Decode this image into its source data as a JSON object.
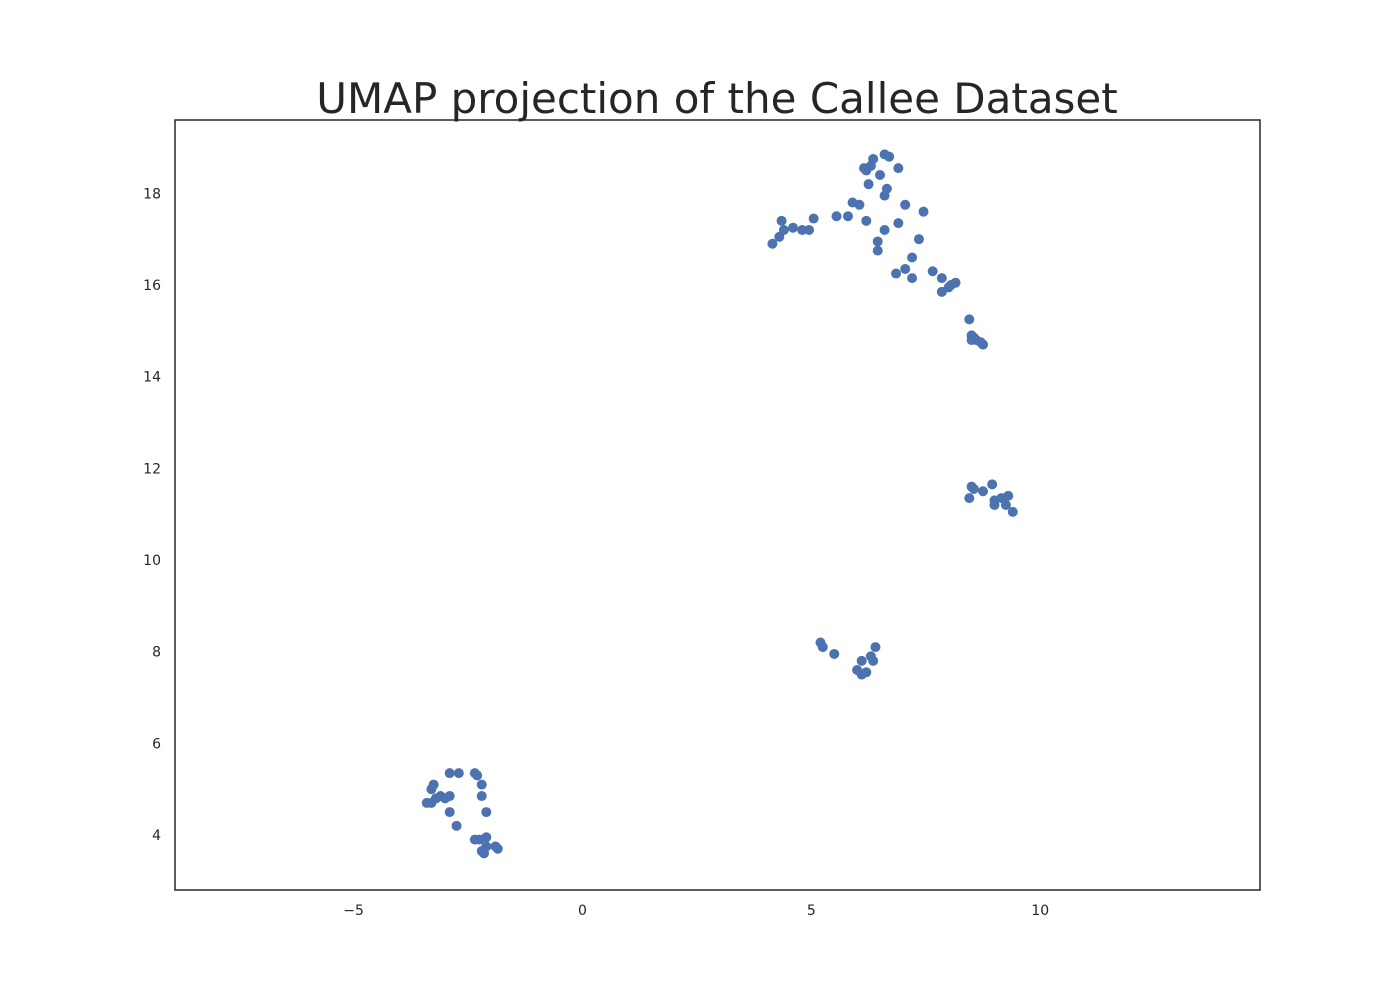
{
  "chart_data": {
    "type": "scatter",
    "title": "UMAP projection of the Callee Dataset",
    "xlabel": "",
    "ylabel": "",
    "xlim": [
      -8.9,
      14.8
    ],
    "ylim": [
      2.8,
      19.6
    ],
    "xticks": [
      -5,
      0,
      5,
      10
    ],
    "xtick_labels": [
      "−5",
      "0",
      "5",
      "10"
    ],
    "yticks": [
      4,
      6,
      8,
      10,
      12,
      14,
      16,
      18
    ],
    "ytick_labels": [
      "4",
      "6",
      "8",
      "10",
      "12",
      "14",
      "16",
      "18"
    ],
    "grid": false,
    "legend": false,
    "point_color": "#4c72b0",
    "points": [
      [
        -3.4,
        4.7
      ],
      [
        -3.3,
        5.0
      ],
      [
        -3.2,
        4.8
      ],
      [
        -3.1,
        4.85
      ],
      [
        -3.0,
        4.8
      ],
      [
        -2.9,
        4.85
      ],
      [
        -3.25,
        5.1
      ],
      [
        -3.3,
        4.7
      ],
      [
        -2.9,
        5.35
      ],
      [
        -2.7,
        5.35
      ],
      [
        -2.35,
        5.35
      ],
      [
        -2.3,
        5.3
      ],
      [
        -2.2,
        5.1
      ],
      [
        -2.2,
        4.85
      ],
      [
        -2.9,
        4.5
      ],
      [
        -2.1,
        4.5
      ],
      [
        -2.75,
        4.2
      ],
      [
        -2.35,
        3.9
      ],
      [
        -2.25,
        3.9
      ],
      [
        -2.1,
        3.95
      ],
      [
        -2.2,
        3.65
      ],
      [
        -2.1,
        3.75
      ],
      [
        -2.15,
        3.6
      ],
      [
        -1.9,
        3.75
      ],
      [
        -1.85,
        3.7
      ],
      [
        5.2,
        8.2
      ],
      [
        5.25,
        8.1
      ],
      [
        5.5,
        7.95
      ],
      [
        6.4,
        8.1
      ],
      [
        6.3,
        7.9
      ],
      [
        6.35,
        7.8
      ],
      [
        6.1,
        7.8
      ],
      [
        6.0,
        7.6
      ],
      [
        6.1,
        7.5
      ],
      [
        6.2,
        7.55
      ],
      [
        8.5,
        11.6
      ],
      [
        8.55,
        11.55
      ],
      [
        8.75,
        11.5
      ],
      [
        8.95,
        11.65
      ],
      [
        8.45,
        11.35
      ],
      [
        9.0,
        11.3
      ],
      [
        9.0,
        11.2
      ],
      [
        9.15,
        11.35
      ],
      [
        9.3,
        11.4
      ],
      [
        9.25,
        11.2
      ],
      [
        9.4,
        11.05
      ],
      [
        8.45,
        15.25
      ],
      [
        8.5,
        14.9
      ],
      [
        8.5,
        14.8
      ],
      [
        8.55,
        14.85
      ],
      [
        8.6,
        14.8
      ],
      [
        8.7,
        14.75
      ],
      [
        8.75,
        14.7
      ],
      [
        4.15,
        16.9
      ],
      [
        4.3,
        17.05
      ],
      [
        4.35,
        17.4
      ],
      [
        4.4,
        17.2
      ],
      [
        4.6,
        17.25
      ],
      [
        4.8,
        17.2
      ],
      [
        4.95,
        17.2
      ],
      [
        5.05,
        17.45
      ],
      [
        5.55,
        17.5
      ],
      [
        5.8,
        17.5
      ],
      [
        5.9,
        17.8
      ],
      [
        6.05,
        17.75
      ],
      [
        6.2,
        17.4
      ],
      [
        6.45,
        16.95
      ],
      [
        6.45,
        16.75
      ],
      [
        6.6,
        17.2
      ],
      [
        6.15,
        18.55
      ],
      [
        6.2,
        18.5
      ],
      [
        6.35,
        18.75
      ],
      [
        6.3,
        18.6
      ],
      [
        6.6,
        18.85
      ],
      [
        6.7,
        18.8
      ],
      [
        6.9,
        18.55
      ],
      [
        6.5,
        18.4
      ],
      [
        6.25,
        18.2
      ],
      [
        6.65,
        18.1
      ],
      [
        6.6,
        17.95
      ],
      [
        7.05,
        17.75
      ],
      [
        7.45,
        17.6
      ],
      [
        6.9,
        17.35
      ],
      [
        7.35,
        17.0
      ],
      [
        7.2,
        16.6
      ],
      [
        6.85,
        16.25
      ],
      [
        7.05,
        16.35
      ],
      [
        7.2,
        16.15
      ],
      [
        7.65,
        16.3
      ],
      [
        7.85,
        16.15
      ],
      [
        7.85,
        15.85
      ],
      [
        8.0,
        15.95
      ],
      [
        8.05,
        16.0
      ],
      [
        8.15,
        16.05
      ]
    ]
  }
}
